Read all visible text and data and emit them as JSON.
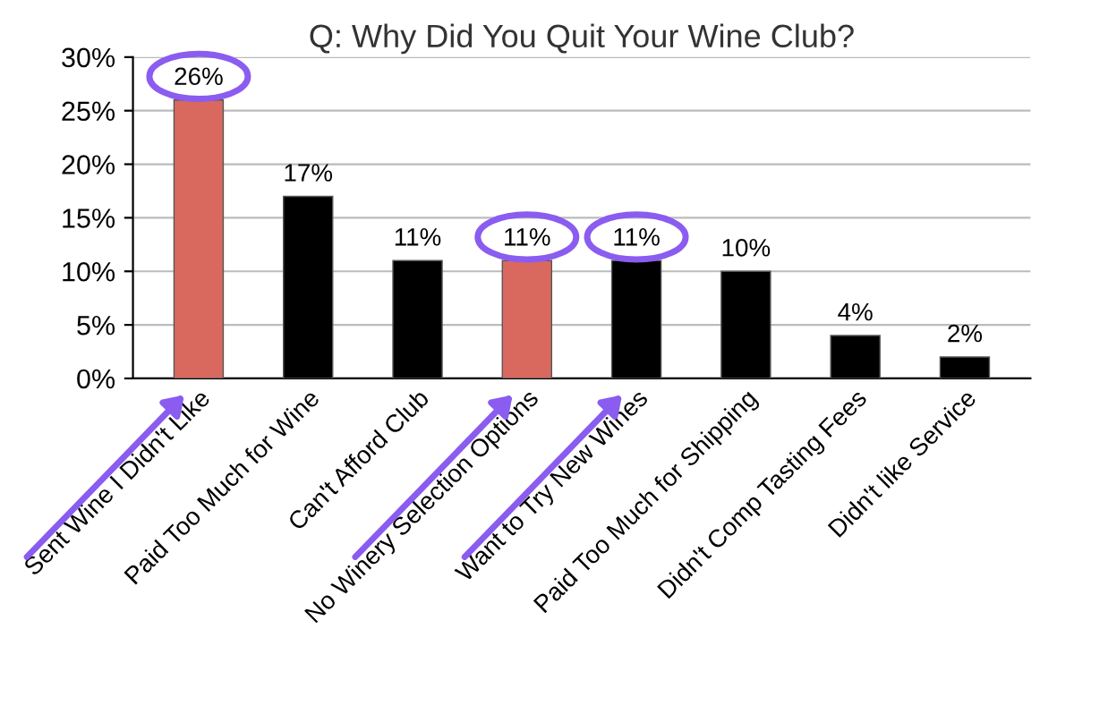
{
  "chart_data": {
    "type": "bar",
    "title": "Q: Why Did You Quit Your Wine Club?",
    "categories": [
      "Sent Wine I Didn't Like",
      "Paid Too Much for Wine",
      "Can't Afford Club",
      "No Winery Selection Options",
      "Want to Try New Wines",
      "Paid Too Much for Shipping",
      "Didn't Comp Tasting Fees",
      "Didn't like Service"
    ],
    "values": [
      26,
      17,
      11,
      11,
      11,
      10,
      4,
      2
    ],
    "colors": [
      "#d9695f",
      "#000000",
      "#000000",
      "#d9695f",
      "#000000",
      "#000000",
      "#000000",
      "#000000"
    ],
    "value_labels": [
      "26%",
      "17%",
      "11%",
      "11%",
      "11%",
      "10%",
      "4%",
      "2%"
    ],
    "ylim": [
      0,
      30
    ],
    "yticks": [
      {
        "value": 0,
        "label": "0%"
      },
      {
        "value": 5,
        "label": "5%"
      },
      {
        "value": 10,
        "label": "10%"
      },
      {
        "value": 15,
        "label": "15%"
      },
      {
        "value": 20,
        "label": "20%"
      },
      {
        "value": 25,
        "label": "25%"
      },
      {
        "value": 30,
        "label": "30%"
      }
    ],
    "grid": "y"
  }
}
